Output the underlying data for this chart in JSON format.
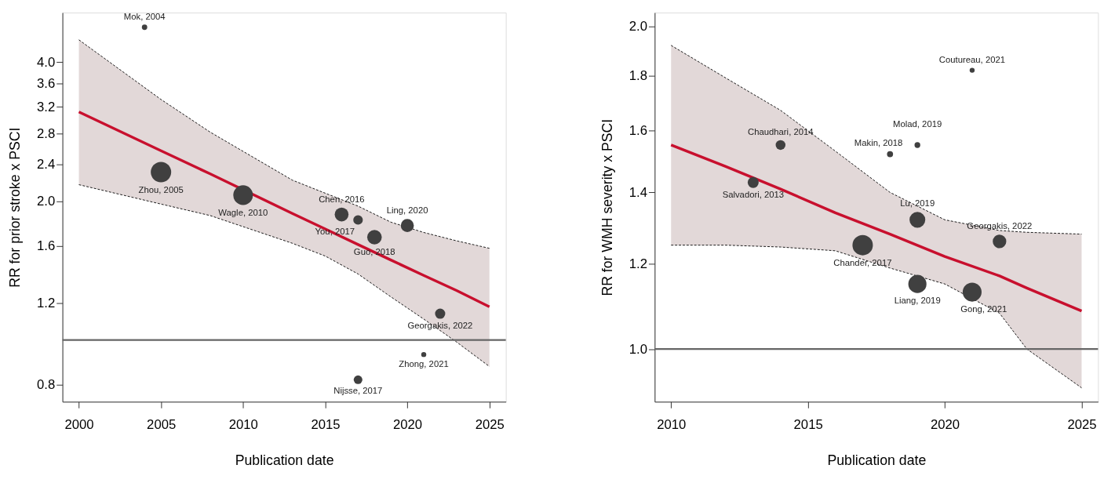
{
  "chart_data": [
    {
      "type": "bubble",
      "xlabel": "Publication date",
      "ylabel": "RR for prior stroke x PSCI",
      "log": "y",
      "grid": false,
      "legend": false,
      "marker": "circle",
      "xlim": [
        1999,
        2026
      ],
      "xticks": [
        2000,
        2005,
        2010,
        2015,
        2020,
        2025
      ],
      "ylim": [
        0.735,
        5.12
      ],
      "yticks": [
        0.8,
        1.2,
        1.6,
        {
          "value": 2,
          "label": "2.0"
        },
        2.4,
        2.8,
        3.2,
        3.6,
        {
          "value": 4,
          "label": "4.0"
        }
      ],
      "series": [
        {
          "color": "#404040",
          "x": [
            2004,
            2005,
            2010,
            2016,
            2017,
            2018,
            2020,
            2022,
            2021,
            2017
          ],
          "values": [
            4.76,
            2.31,
            2.06,
            1.87,
            1.82,
            1.67,
            1.77,
            1.14,
            0.93,
            0.82
          ],
          "sizes": [
            0.07,
            1,
            0.93,
            0.46,
            0.22,
            0.51,
            0.41,
            0.25,
            0.06,
            0.18
          ]
        },
        {
          "type": "line",
          "color": "#c8102e",
          "line_style": "solid",
          "marker": "none",
          "x": [
            2000,
            2005,
            2008,
            2013,
            2015,
            2017,
            2019,
            2021,
            2023,
            2025
          ],
          "values": [
            3.12,
            2.57,
            2.29,
            1.88,
            1.74,
            1.61,
            1.49,
            1.38,
            1.28,
            1.18
          ],
          "lower": [
            2.17,
            1.97,
            1.86,
            1.62,
            1.52,
            1.39,
            1.24,
            1.11,
            0.99,
            0.876
          ],
          "upper": [
            4.47,
            3.32,
            2.82,
            2.22,
            2.08,
            1.95,
            1.8,
            1.71,
            1.64,
            1.58
          ]
        },
        {
          "type": "line",
          "color": "#000000",
          "line_style": "dashed",
          "marker": "none",
          "x": [
            2000,
            2005,
            2008,
            2013,
            2015,
            2017,
            2019,
            2021,
            2023,
            2025
          ],
          "values": [
            2.17,
            1.97,
            1.86,
            1.62,
            1.52,
            1.39,
            1.24,
            1.11,
            0.99,
            0.876
          ]
        },
        {
          "type": "line",
          "color": "#000000",
          "line_style": "dashed",
          "marker": "none",
          "x": [
            2000,
            2005,
            2008,
            2013,
            2015,
            2017,
            2019,
            2021,
            2023,
            2025
          ],
          "values": [
            4.47,
            3.32,
            2.82,
            2.22,
            2.08,
            1.95,
            1.8,
            1.71,
            1.64,
            1.58
          ]
        }
      ],
      "ref_lines": [
        {
          "axis": "y",
          "value": 1,
          "color": "#666666"
        }
      ],
      "annotations": [
        {
          "text": "Mok, 2004",
          "x": 2004,
          "y": 4.76
        },
        {
          "text": "Zhou, 2005",
          "x": 2005,
          "y": 2.31
        },
        {
          "text": "Wagle, 2010",
          "x": 2010,
          "y": 2.06
        },
        {
          "text": "Chen, 2016",
          "x": 2016,
          "y": 1.87
        },
        {
          "text": "You, 2017",
          "x": 2017,
          "y": 1.82
        },
        {
          "text": "Guo, 2018",
          "x": 2018,
          "y": 1.67
        },
        {
          "text": "Ling, 2020",
          "x": 2020,
          "y": 1.77
        },
        {
          "text": "Georgakis, 2022",
          "x": 2022,
          "y": 1.14
        },
        {
          "text": "Zhong, 2021",
          "x": 2021,
          "y": 0.93
        },
        {
          "text": "Nijsse, 2017",
          "x": 2017,
          "y": 0.82
        }
      ]
    },
    {
      "type": "bubble",
      "xlabel": "Publication date",
      "ylabel": "RR for WMH severity x PSCI",
      "log": "y",
      "grid": false,
      "legend": false,
      "marker": "circle",
      "xlim": [
        2009.4,
        2025.6
      ],
      "xticks": [
        2010,
        2015,
        2020,
        2025
      ],
      "ylim": [
        0.893,
        2.06
      ],
      "yticks": [
        {
          "value": 1,
          "label": "1.0"
        },
        1.2,
        1.4,
        1.6,
        1.8,
        {
          "value": 2,
          "label": "2.0"
        }
      ],
      "series": [
        {
          "color": "#404040",
          "x": [
            2021,
            2014,
            2018,
            2019,
            2013,
            2019,
            2022,
            2017,
            2019,
            2021
          ],
          "values": [
            1.82,
            1.55,
            1.52,
            1.55,
            1.43,
            1.32,
            1.26,
            1.25,
            1.15,
            1.13
          ],
          "sizes": [
            0.06,
            0.23,
            0.09,
            0.08,
            0.29,
            0.6,
            0.44,
            1,
            0.79,
            0.86
          ]
        },
        {
          "type": "line",
          "color": "#c8102e",
          "line_style": "solid",
          "marker": "none",
          "x": [
            2010,
            2012,
            2014,
            2016,
            2018,
            2020,
            2022,
            2023,
            2025
          ],
          "values": [
            1.55,
            1.48,
            1.41,
            1.34,
            1.28,
            1.22,
            1.17,
            1.14,
            1.085
          ],
          "lower": [
            1.25,
            1.25,
            1.245,
            1.235,
            1.19,
            1.15,
            1.08,
            1.0,
            0.92
          ],
          "upper": [
            1.92,
            1.79,
            1.67,
            1.53,
            1.4,
            1.32,
            1.29,
            1.285,
            1.28
          ]
        },
        {
          "type": "line",
          "color": "#000000",
          "line_style": "dashed",
          "marker": "none",
          "x": [
            2010,
            2012,
            2014,
            2016,
            2018,
            2020,
            2022,
            2023,
            2025
          ],
          "values": [
            1.25,
            1.25,
            1.245,
            1.235,
            1.19,
            1.15,
            1.08,
            1.0,
            0.92
          ]
        },
        {
          "type": "line",
          "color": "#000000",
          "line_style": "dashed",
          "marker": "none",
          "x": [
            2010,
            2012,
            2014,
            2016,
            2018,
            2020,
            2022,
            2023,
            2025
          ],
          "values": [
            1.92,
            1.79,
            1.67,
            1.53,
            1.4,
            1.32,
            1.29,
            1.285,
            1.28
          ]
        }
      ],
      "ref_lines": [
        {
          "axis": "y",
          "value": 1,
          "color": "#666666"
        }
      ],
      "annotations": [
        {
          "text": "Coutureau, 2021",
          "x": 2021,
          "y": 1.82
        },
        {
          "text": "Chaudhari, 2014",
          "x": 2014,
          "y": 1.55
        },
        {
          "text": "Makin, 2018",
          "x": 2018,
          "y": 1.52
        },
        {
          "text": "Molad, 2019",
          "x": 2019,
          "y": 1.55
        },
        {
          "text": "Salvadori, 2013",
          "x": 2013,
          "y": 1.43
        },
        {
          "text": "Lu, 2019",
          "x": 2019,
          "y": 1.32
        },
        {
          "text": "Georgakis, 2022",
          "x": 2022,
          "y": 1.26
        },
        {
          "text": "Chander, 2017",
          "x": 2017,
          "y": 1.25
        },
        {
          "text": "Liang, 2019",
          "x": 2019,
          "y": 1.15
        },
        {
          "text": "Gong, 2021",
          "x": 2021,
          "y": 1.13
        }
      ]
    }
  ]
}
